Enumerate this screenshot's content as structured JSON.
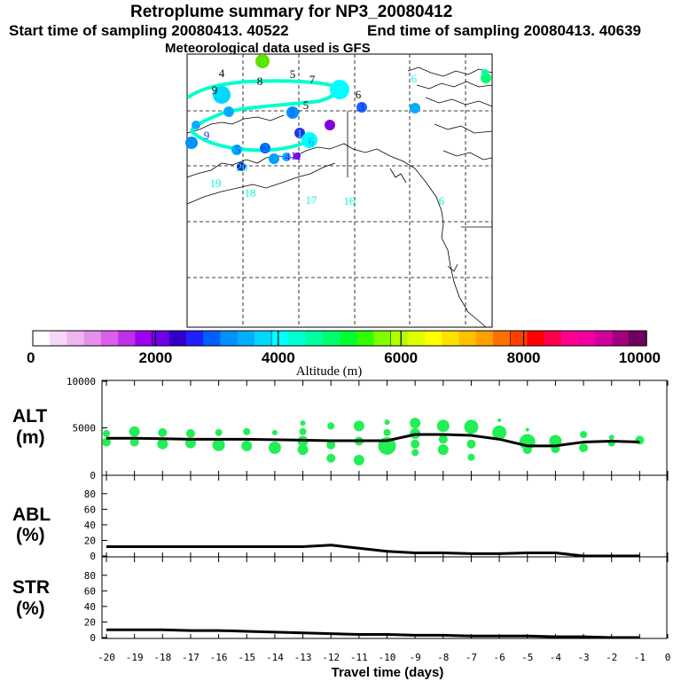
{
  "header": {
    "title": "Retroplume summary for NP3_20080412",
    "start_label": "Start time of sampling 20080413. 40522",
    "end_label": "End time of sampling 20080413. 40639",
    "met_label": "Meteorological data used is GFS"
  },
  "colorbar": {
    "title": "Altitude (m)",
    "ticks": [
      "0",
      "2000",
      "4000",
      "6000",
      "8000",
      "10000"
    ],
    "range": [
      0,
      10000
    ],
    "colors": [
      "#ffffff",
      "#f6d6f6",
      "#f0b4f0",
      "#e690ec",
      "#da60e8",
      "#c030e8",
      "#a000f0",
      "#7000e8",
      "#3000c8",
      "#2020ff",
      "#0060ff",
      "#0090ff",
      "#00b0ff",
      "#00d8ff",
      "#00ffff",
      "#00ffd0",
      "#00ffa0",
      "#00ff70",
      "#00ff30",
      "#30ff00",
      "#80ff00",
      "#b0ff00",
      "#e0ff00",
      "#ffff00",
      "#ffe000",
      "#ffc000",
      "#ffa000",
      "#ff7000",
      "#ff4000",
      "#ff0000",
      "#ff0050",
      "#ff0090",
      "#f000a0",
      "#d000a0",
      "#a00080",
      "#700060"
    ]
  },
  "map_labels": [
    {
      "text": "8",
      "color": "#40ff00"
    },
    {
      "text": "4",
      "color": "#000000"
    },
    {
      "text": "9",
      "color": "#000000"
    },
    {
      "text": "8",
      "color": "#000000"
    },
    {
      "text": "5",
      "color": "#000000"
    },
    {
      "text": "7",
      "color": "#000000"
    },
    {
      "text": "6",
      "color": "#00ffff"
    },
    {
      "text": "5",
      "color": "#00ffff"
    },
    {
      "text": "6",
      "color": "#000000"
    },
    {
      "text": "4",
      "color": "#00a0ff"
    },
    {
      "text": "3",
      "color": "#0050ff"
    },
    {
      "text": "5",
      "color": "#000000"
    },
    {
      "text": "3",
      "color": "#2020ff"
    },
    {
      "text": "3",
      "color": "#00a0ff"
    },
    {
      "text": "4",
      "color": "#00a0ff"
    },
    {
      "text": "3",
      "color": "#00a0ff"
    },
    {
      "text": "9",
      "color": "#2020ff"
    },
    {
      "text": "1",
      "color": "#00ffff"
    },
    {
      "text": "6",
      "color": "#00a0ff"
    },
    {
      "text": "5",
      "color": "#0050ff"
    },
    {
      "text": "2",
      "color": "#00a0ff"
    },
    {
      "text": "3",
      "color": "#00a0ff"
    },
    {
      "text": "4",
      "color": "#8000ff"
    },
    {
      "text": "11",
      "color": "#2020ff"
    },
    {
      "text": "20",
      "color": "#00ffd0"
    },
    {
      "text": "19",
      "color": "#00ffd0"
    },
    {
      "text": "18",
      "color": "#00ffd0"
    },
    {
      "text": "17",
      "color": "#00ffd0"
    },
    {
      "text": "16",
      "color": "#00ffd0"
    },
    {
      "text": "6",
      "color": "#00ffd0"
    },
    {
      "text": "4",
      "color": "#00ff70"
    }
  ],
  "chart_data": [
    {
      "type": "line",
      "panel": "altitude",
      "ylabel_line1": "ALT",
      "ylabel_line2": "(m)",
      "ylim": [
        0,
        10000
      ],
      "yticks": [
        "0",
        "5000",
        "10000"
      ],
      "x": [
        -20,
        -19,
        -18,
        -17,
        -16,
        -15,
        -14,
        -13,
        -12,
        -11,
        -10,
        -9,
        -8,
        -7,
        -6,
        -5,
        -4,
        -3,
        -2,
        -1
      ],
      "values": [
        3900,
        3900,
        3850,
        3800,
        3800,
        3800,
        3750,
        3700,
        3650,
        3650,
        3650,
        4300,
        4300,
        4200,
        3800,
        3100,
        3100,
        3500,
        3600,
        3500
      ],
      "cluster_points": [
        {
          "x": -20,
          "y": 4400,
          "r": 4
        },
        {
          "x": -20,
          "y": 3500,
          "r": 5
        },
        {
          "x": -19,
          "y": 4600,
          "r": 6
        },
        {
          "x": -19,
          "y": 3500,
          "r": 5
        },
        {
          "x": -18,
          "y": 4500,
          "r": 5
        },
        {
          "x": -18,
          "y": 3300,
          "r": 6
        },
        {
          "x": -17,
          "y": 4400,
          "r": 5
        },
        {
          "x": -17,
          "y": 3400,
          "r": 6
        },
        {
          "x": -16,
          "y": 4500,
          "r": 4
        },
        {
          "x": -16,
          "y": 3200,
          "r": 7
        },
        {
          "x": -15,
          "y": 4600,
          "r": 4
        },
        {
          "x": -15,
          "y": 3100,
          "r": 6
        },
        {
          "x": -14,
          "y": 4500,
          "r": 3
        },
        {
          "x": -14,
          "y": 2900,
          "r": 7
        },
        {
          "x": -13,
          "y": 5500,
          "r": 3
        },
        {
          "x": -13,
          "y": 4600,
          "r": 4
        },
        {
          "x": -13,
          "y": 3600,
          "r": 6
        },
        {
          "x": -13,
          "y": 2700,
          "r": 6
        },
        {
          "x": -12,
          "y": 5200,
          "r": 4
        },
        {
          "x": -12,
          "y": 3200,
          "r": 5
        },
        {
          "x": -12,
          "y": 1800,
          "r": 5
        },
        {
          "x": -11,
          "y": 5200,
          "r": 6
        },
        {
          "x": -11,
          "y": 3600,
          "r": 5
        },
        {
          "x": -11,
          "y": 1600,
          "r": 6
        },
        {
          "x": -10,
          "y": 5600,
          "r": 3
        },
        {
          "x": -10,
          "y": 4500,
          "r": 4
        },
        {
          "x": -10,
          "y": 3100,
          "r": 10
        },
        {
          "x": -9,
          "y": 5500,
          "r": 6
        },
        {
          "x": -9,
          "y": 4400,
          "r": 6
        },
        {
          "x": -9,
          "y": 3300,
          "r": 5
        },
        {
          "x": -9,
          "y": 2400,
          "r": 4
        },
        {
          "x": -8,
          "y": 5200,
          "r": 7
        },
        {
          "x": -8,
          "y": 3800,
          "r": 5
        },
        {
          "x": -8,
          "y": 2700,
          "r": 6
        },
        {
          "x": -7,
          "y": 5100,
          "r": 8
        },
        {
          "x": -7,
          "y": 3300,
          "r": 5
        },
        {
          "x": -7,
          "y": 1900,
          "r": 4
        },
        {
          "x": -6,
          "y": 5800,
          "r": 2
        },
        {
          "x": -6,
          "y": 4500,
          "r": 8
        },
        {
          "x": -5,
          "y": 4800,
          "r": 2
        },
        {
          "x": -5,
          "y": 3500,
          "r": 9
        },
        {
          "x": -5,
          "y": 2700,
          "r": 5
        },
        {
          "x": -4,
          "y": 3600,
          "r": 7
        },
        {
          "x": -4,
          "y": 2800,
          "r": 5
        },
        {
          "x": -3,
          "y": 4300,
          "r": 4
        },
        {
          "x": -3,
          "y": 2900,
          "r": 5
        },
        {
          "x": -2,
          "y": 4000,
          "r": 3
        },
        {
          "x": -2,
          "y": 3400,
          "r": 4
        },
        {
          "x": -1,
          "y": 3700,
          "r": 5
        }
      ]
    },
    {
      "type": "line",
      "panel": "abl",
      "ylabel_line1": "ABL",
      "ylabel_line2": "(%)",
      "ylim": [
        0,
        90
      ],
      "yticks": [
        "0",
        "20",
        "40",
        "60",
        "80"
      ],
      "x": [
        -20,
        -19,
        -18,
        -17,
        -16,
        -15,
        -14,
        -13,
        -12,
        -11,
        -10,
        -9,
        -8,
        -7,
        -6,
        -5,
        -4,
        -3,
        -2,
        -1
      ],
      "values": [
        12,
        12,
        12,
        12,
        12,
        12,
        12,
        12,
        14,
        10,
        6,
        4,
        4,
        3,
        3,
        4,
        4,
        0,
        0,
        0
      ]
    },
    {
      "type": "line",
      "panel": "str",
      "ylabel_line1": "STR",
      "ylabel_line2": "(%)",
      "ylim": [
        0,
        90
      ],
      "yticks": [
        "0",
        "20",
        "40",
        "60",
        "80"
      ],
      "x": [
        -20,
        -19,
        -18,
        -17,
        -16,
        -15,
        -14,
        -13,
        -12,
        -11,
        -10,
        -9,
        -8,
        -7,
        -6,
        -5,
        -4,
        -3,
        -2,
        -1
      ],
      "values": [
        10,
        10,
        10,
        9,
        9,
        8,
        7,
        6,
        5,
        4,
        4,
        3,
        3,
        2,
        2,
        2,
        1,
        1,
        0,
        0
      ],
      "xlabel": "Travel time (days)",
      "xticks": [
        "-20",
        "-19",
        "-18",
        "-17",
        "-16",
        "-15",
        "-14",
        "-13",
        "-12",
        "-11",
        "-10",
        "-9",
        "-8",
        "-7",
        "-6",
        "-5",
        "-4",
        "-3",
        "-2",
        "-1",
        "0"
      ]
    }
  ]
}
